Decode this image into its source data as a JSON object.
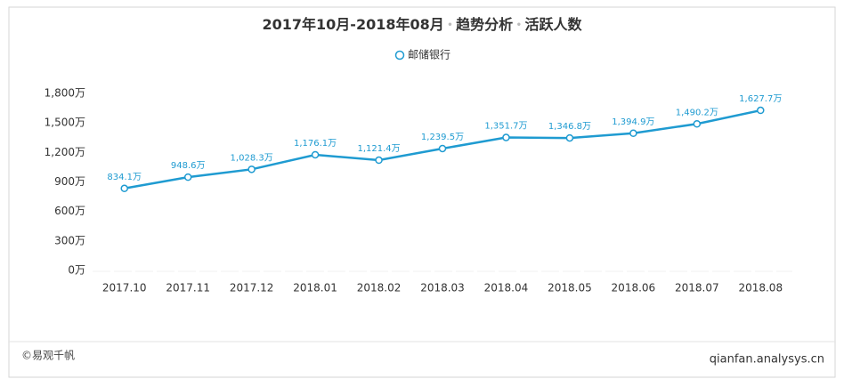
{
  "chart_data": {
    "type": "line",
    "title": [
      "2017年10月-2018年08月",
      "趋势分析",
      "活跃人数"
    ],
    "categories": [
      "2017.10",
      "2017.11",
      "2017.12",
      "2018.01",
      "2018.02",
      "2018.03",
      "2018.04",
      "2018.05",
      "2018.06",
      "2018.07",
      "2018.08"
    ],
    "series": [
      {
        "name": "邮储银行",
        "color": "#1f9bd1",
        "values": [
          834.1,
          948.6,
          1028.3,
          1176.1,
          1121.4,
          1239.5,
          1351.7,
          1346.8,
          1394.9,
          1490.2,
          1627.7
        ],
        "value_labels": [
          "834.1万",
          "948.6万",
          "1,028.3万",
          "1,176.1万",
          "1,121.4万",
          "1,239.5万",
          "1,351.7万",
          "1,346.8万",
          "1,394.9万",
          "1,490.2万",
          "1,627.7万"
        ]
      }
    ],
    "ylim": [
      0,
      1800
    ],
    "yticks": [
      {
        "value": 0,
        "label": "0万"
      },
      {
        "value": 300,
        "label": "300万"
      },
      {
        "value": 600,
        "label": "600万"
      },
      {
        "value": 900,
        "label": "900万"
      },
      {
        "value": 1200,
        "label": "1,200万"
      },
      {
        "value": 1500,
        "label": "1,500万"
      },
      {
        "value": 1800,
        "label": "1,800万"
      }
    ],
    "grid": false,
    "legend": "top"
  },
  "footer": {
    "left": "©易观千帆",
    "right": "qianfan.analysys.cn"
  }
}
